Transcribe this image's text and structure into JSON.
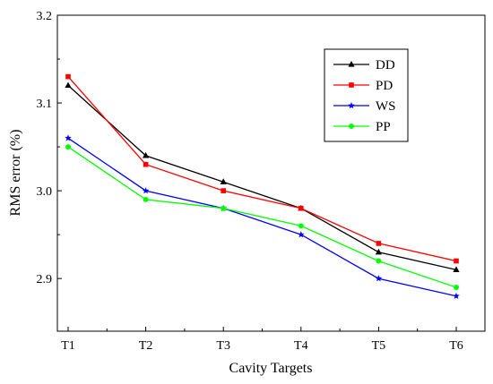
{
  "chart_data": {
    "type": "line",
    "title": "",
    "xlabel": "Cavity Targets",
    "ylabel": "RMS error (%)",
    "categories": [
      "T1",
      "T2",
      "T3",
      "T4",
      "T5",
      "T6"
    ],
    "ylim": [
      2.84,
      3.2
    ],
    "yticks": [
      2.9,
      3.0,
      3.1,
      3.2
    ],
    "ytick_labels": [
      "2.9",
      "3.0",
      "3.1",
      "3.2"
    ],
    "grid": false,
    "legend_position": "top-right",
    "series": [
      {
        "name": "DD",
        "color": "#000000",
        "marker": "triangle",
        "values": [
          3.12,
          3.04,
          3.01,
          2.98,
          2.93,
          2.91
        ]
      },
      {
        "name": "PD",
        "color": "#ff0000",
        "marker": "square",
        "values": [
          3.13,
          3.03,
          3.0,
          2.98,
          2.94,
          2.92
        ]
      },
      {
        "name": "WS",
        "color": "#0000ff",
        "marker": "star",
        "values": [
          3.06,
          3.0,
          2.98,
          2.95,
          2.9,
          2.88
        ]
      },
      {
        "name": "PP",
        "color": "#00ff00",
        "marker": "circle",
        "values": [
          3.05,
          2.99,
          2.98,
          2.96,
          2.92,
          2.89
        ]
      }
    ]
  }
}
